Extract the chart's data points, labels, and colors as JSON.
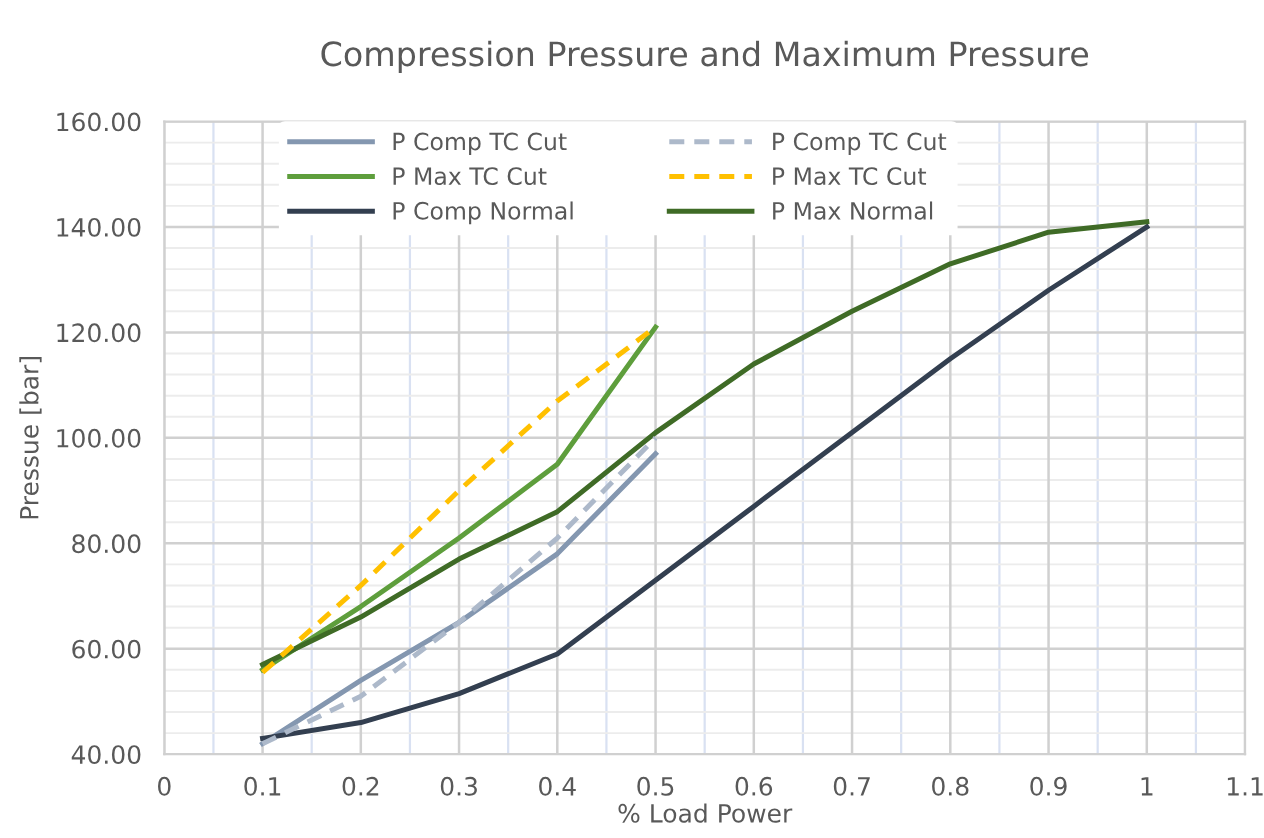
{
  "chart_data": {
    "type": "line",
    "title": "Compression Pressure and Maximum Pressure",
    "xlabel": "% Load Power",
    "ylabel": "Pressue [bar]",
    "xlim": [
      0,
      1.1
    ],
    "xticks": [
      0,
      0.1,
      0.2,
      0.3,
      0.4,
      0.5,
      0.6,
      0.7,
      0.8,
      0.9,
      1,
      1.1
    ],
    "ylim": [
      40,
      160
    ],
    "yticks": [
      {
        "value": 40,
        "label": "40.00"
      },
      {
        "value": 60,
        "label": "60.00"
      },
      {
        "value": 80,
        "label": "80.00"
      },
      {
        "value": 100,
        "label": "100.00"
      },
      {
        "value": 120,
        "label": "120.00"
      },
      {
        "value": 140,
        "label": "140.00"
      },
      {
        "value": 160,
        "label": "160.00"
      }
    ],
    "grid": true,
    "legend": "top",
    "marker": "none",
    "series": [
      {
        "name": "P Comp TC Cut",
        "color": "#8497b0",
        "line_style": "solid",
        "x": [
          0.1,
          0.2,
          0.3,
          0.4,
          0.5
        ],
        "values": [
          42,
          54,
          65,
          78,
          97
        ]
      },
      {
        "name": "P Comp TC Cut",
        "color": "#adb9ca",
        "line_style": "dashed",
        "x": [
          0.1,
          0.2,
          0.3,
          0.4,
          0.5
        ],
        "values": [
          42,
          51,
          65,
          81,
          100
        ]
      },
      {
        "name": "P Max TC Cut",
        "color": "#5e9e3c",
        "line_style": "solid",
        "x": [
          0.1,
          0.2,
          0.3,
          0.4,
          0.5
        ],
        "values": [
          56,
          68,
          81,
          95,
          121
        ]
      },
      {
        "name": "P Max TC Cut",
        "color": "#ffc000",
        "line_style": "dashed",
        "x": [
          0.1,
          0.2,
          0.3,
          0.4,
          0.5
        ],
        "values": [
          55.5,
          72,
          90,
          107,
          121
        ]
      },
      {
        "name": "P Comp Normal",
        "color": "#333f50",
        "line_style": "solid",
        "x": [
          0.1,
          0.2,
          0.3,
          0.4,
          0.5,
          0.6,
          0.7,
          0.8,
          0.9,
          1.0
        ],
        "values": [
          43,
          46,
          51.5,
          59,
          73,
          87,
          101,
          115,
          128,
          140
        ]
      },
      {
        "name": "P Max Normal",
        "color": "#3f6b26",
        "line_style": "solid",
        "x": [
          0.1,
          0.2,
          0.3,
          0.4,
          0.5,
          0.6,
          0.7,
          0.8,
          0.9,
          1.0
        ],
        "values": [
          57,
          66,
          77,
          86,
          101,
          114,
          124,
          133,
          139,
          141
        ]
      }
    ]
  }
}
